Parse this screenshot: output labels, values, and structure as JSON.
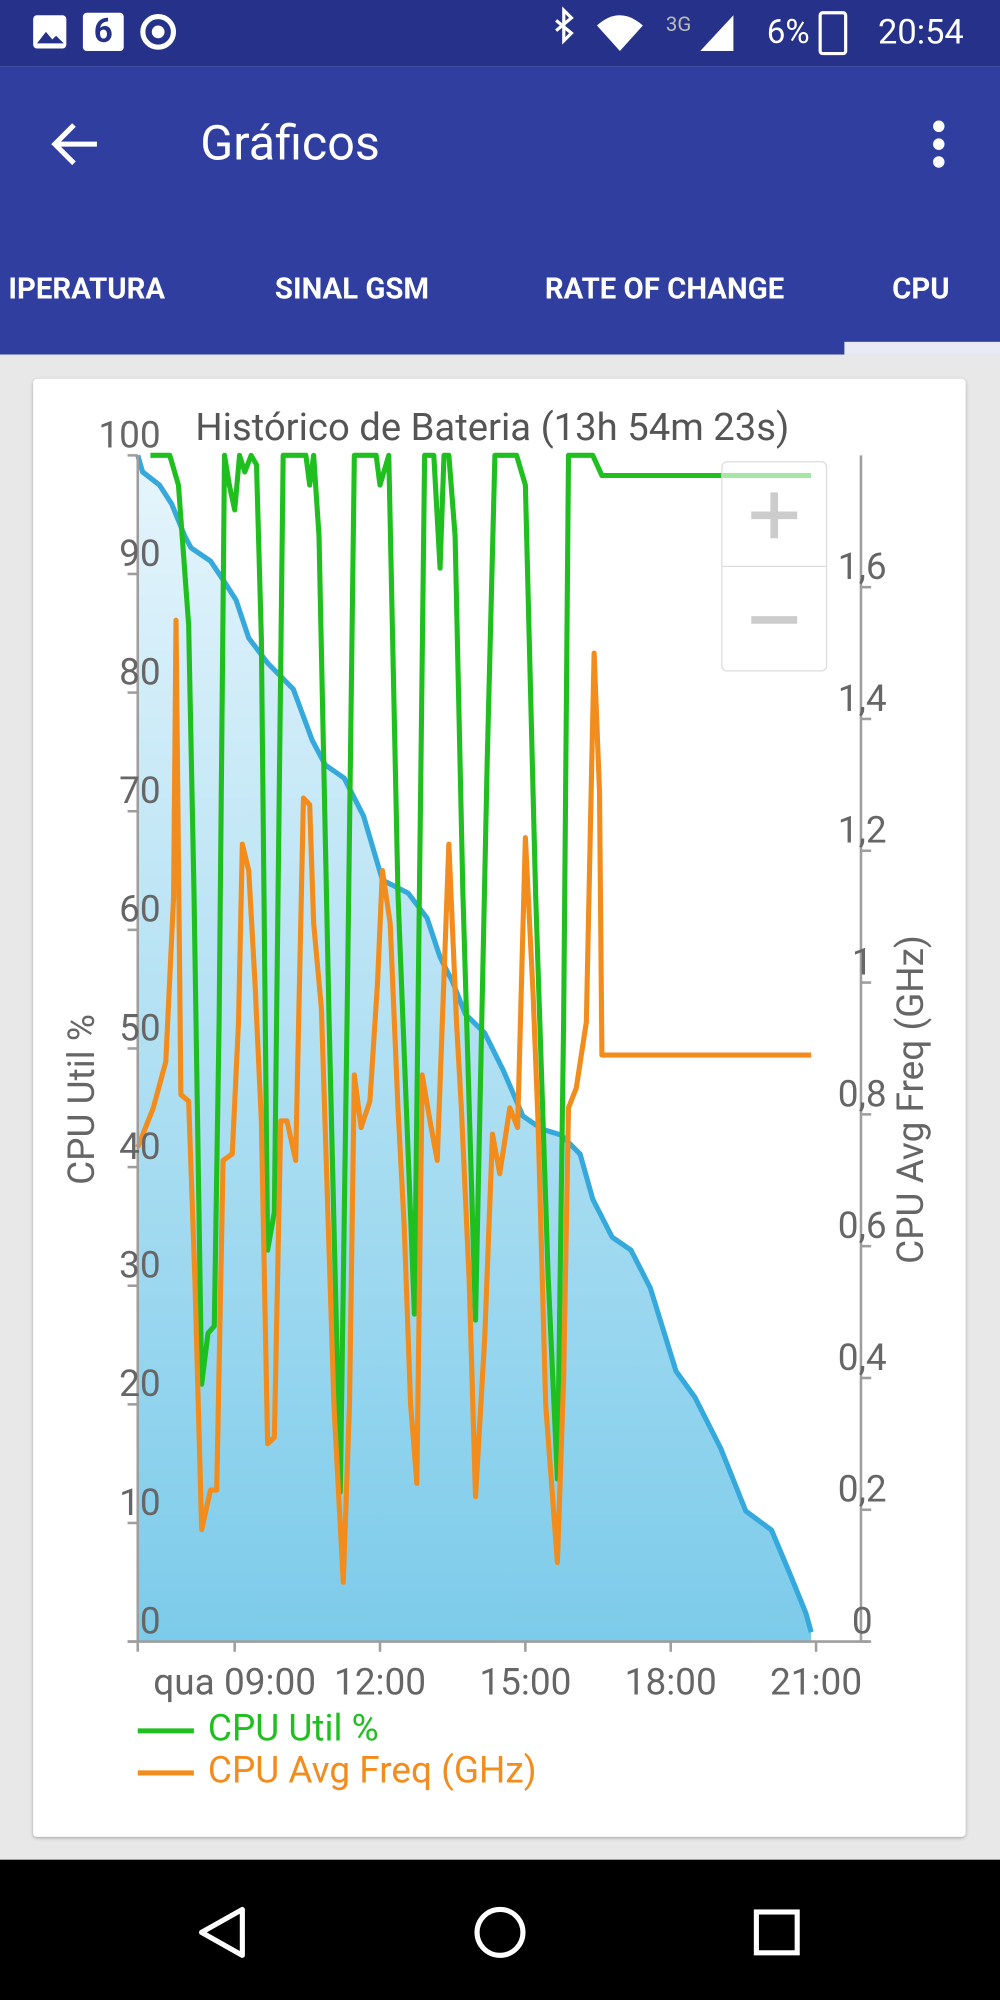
{
  "status_bar": {
    "notification_badge": "6",
    "network": "3G",
    "battery": "6%",
    "time": "20:54"
  },
  "app_bar": {
    "title": "Gráficos"
  },
  "tabs": [
    "IPERATURA",
    "SINAL GSM",
    "RATE OF CHANGE",
    "CPU"
  ],
  "chart_data": {
    "type": "line",
    "title": "Histórico de Bateria (13h 54m 23s)",
    "y_label": "CPU Util %",
    "y2_label": "CPU Avg Freq (GHz)",
    "xlim": [
      7.0,
      20.9
    ],
    "xticks": [
      {
        "value": 9,
        "label": "qua 09:00"
      },
      {
        "value": 12,
        "label": "12:00"
      },
      {
        "value": 15,
        "label": "15:00"
      },
      {
        "value": 18,
        "label": "18:00"
      },
      {
        "value": 21,
        "label": "21:00"
      }
    ],
    "ylim": [
      0,
      100
    ],
    "yticks": [
      0,
      10,
      20,
      30,
      40,
      50,
      60,
      70,
      80,
      90,
      100
    ],
    "y2lim": [
      0,
      1.8
    ],
    "y2ticks": [
      0,
      {
        "value": 0.2,
        "label": "0,2"
      },
      {
        "value": 0.4,
        "label": "0,4"
      },
      {
        "value": 0.6,
        "label": "0,6"
      },
      {
        "value": 0.8,
        "label": "0,8"
      },
      1,
      {
        "value": 1.2,
        "label": "1,2"
      },
      {
        "value": 1.4,
        "label": "1,4"
      },
      {
        "value": 1.6,
        "label": "1,6"
      }
    ],
    "series": [
      {
        "type": "area",
        "color": "#35a8dc",
        "x": [
          7.0,
          7.1,
          7.45,
          7.7,
          7.97,
          8.1,
          8.5,
          8.76,
          9.03,
          9.29,
          9.68,
          10.21,
          10.6,
          10.87,
          11.26,
          11.66,
          12.05,
          12.58,
          12.97,
          13.24,
          13.5,
          13.76,
          14.16,
          14.55,
          14.95,
          15.34,
          15.74,
          16.13,
          16.39,
          16.79,
          17.18,
          17.58,
          18.11,
          18.5,
          19.03,
          19.55,
          20.08,
          20.47,
          20.79,
          20.9
        ],
        "values": [
          100,
          98.6,
          97.5,
          95.9,
          93.2,
          92.2,
          91.1,
          89.5,
          87.8,
          84.6,
          82.5,
          80.3,
          76.0,
          73.9,
          72.8,
          69.6,
          64.2,
          63.1,
          61.0,
          57.7,
          55.6,
          52.9,
          51.3,
          48.1,
          44.3,
          43.2,
          42.7,
          41.1,
          37.3,
          34.1,
          33.0,
          29.8,
          22.8,
          20.6,
          16.3,
          11.0,
          9.4,
          5.6,
          2.4,
          0.8
        ]
      },
      {
        "name": "CPU Util %",
        "color": "#1fbf1f",
        "x": [
          7.26,
          7.66,
          7.84,
          8.05,
          8.16,
          8.32,
          8.45,
          8.58,
          8.68,
          8.79,
          8.89,
          9.0,
          9.1,
          9.21,
          9.34,
          9.45,
          9.55,
          9.68,
          9.82,
          10.0,
          10.47,
          10.55,
          10.63,
          10.74,
          10.95,
          11.18,
          11.32,
          11.47,
          11.92,
          12.0,
          12.18,
          12.37,
          12.71,
          12.92,
          13.11,
          13.24,
          13.32,
          13.42,
          13.55,
          13.71,
          13.97,
          14.21,
          14.37,
          14.82,
          15.0,
          15.21,
          15.47,
          15.66,
          15.79,
          15.89,
          16.39,
          16.58,
          20.9
        ],
        "values": [
          100,
          100,
          97.5,
          85.7,
          63.1,
          21.7,
          26.0,
          26.6,
          52.4,
          100,
          97.5,
          95.4,
          100,
          98.6,
          100,
          99.2,
          84.6,
          33.0,
          36.2,
          100,
          100,
          97.5,
          100,
          93.2,
          52.4,
          12.6,
          52.4,
          100,
          100,
          97.5,
          100,
          63.1,
          27.6,
          100,
          100,
          90.5,
          100,
          100,
          93.2,
          63.1,
          27.1,
          73.9,
          100,
          100,
          97.5,
          63.1,
          30.9,
          13.7,
          52.4,
          100,
          100,
          98.3,
          98.3
        ]
      },
      {
        "name": "CPU Avg Freq (GHz)",
        "color": "#f28c1c",
        "axis": "y2",
        "x": [
          7.0,
          7.32,
          7.58,
          7.74,
          7.79,
          7.89,
          8.05,
          8.18,
          8.32,
          8.5,
          8.63,
          8.76,
          8.95,
          9.08,
          9.16,
          9.29,
          9.42,
          9.55,
          9.68,
          9.82,
          9.95,
          10.08,
          10.26,
          10.42,
          10.55,
          10.63,
          10.79,
          11.05,
          11.24,
          11.37,
          11.47,
          11.61,
          11.79,
          11.95,
          12.05,
          12.21,
          12.37,
          12.5,
          12.63,
          12.76,
          12.87,
          13.03,
          13.18,
          13.42,
          13.58,
          13.68,
          13.84,
          13.97,
          14.16,
          14.32,
          14.47,
          14.68,
          14.84,
          15.0,
          15.16,
          15.26,
          15.42,
          15.66,
          15.79,
          15.89,
          16.05,
          16.26,
          16.37,
          16.42,
          16.53,
          16.58,
          20.9
        ],
        "values": [
          0.75,
          0.81,
          0.88,
          1.13,
          1.55,
          0.83,
          0.82,
          0.55,
          0.17,
          0.23,
          0.23,
          0.73,
          0.74,
          0.94,
          1.21,
          1.17,
          1.0,
          0.79,
          0.3,
          0.31,
          0.79,
          0.79,
          0.73,
          1.28,
          1.27,
          1.09,
          0.96,
          0.36,
          0.09,
          0.36,
          0.86,
          0.78,
          0.82,
          1.0,
          1.17,
          1.09,
          0.81,
          0.63,
          0.36,
          0.24,
          0.86,
          0.79,
          0.73,
          1.21,
          0.94,
          0.81,
          0.55,
          0.22,
          0.46,
          0.77,
          0.71,
          0.81,
          0.78,
          1.22,
          0.98,
          0.79,
          0.36,
          0.12,
          0.4,
          0.81,
          0.84,
          0.94,
          1.33,
          1.5,
          1.29,
          0.89,
          0.89
        ]
      }
    ]
  }
}
